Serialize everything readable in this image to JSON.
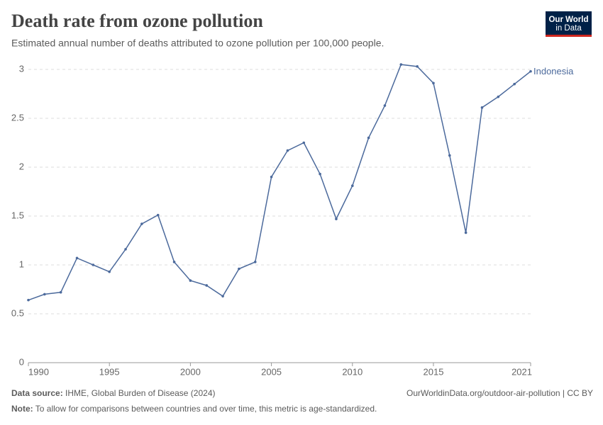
{
  "logo": [
    "Our World",
    "in Data"
  ],
  "chart_data": {
    "type": "line",
    "title": "Death rate from ozone pollution",
    "subtitle": "Estimated annual number of deaths attributed to ozone pollution per 100,000 people.",
    "x": [
      1990,
      1991,
      1992,
      1993,
      1994,
      1995,
      1996,
      1997,
      1998,
      1999,
      2000,
      2001,
      2002,
      2003,
      2004,
      2005,
      2006,
      2007,
      2008,
      2009,
      2010,
      2011,
      2012,
      2013,
      2014,
      2015,
      2016,
      2017,
      2018,
      2019,
      2020,
      2021
    ],
    "series": [
      {
        "name": "Indonesia",
        "color": "#4c6a9c",
        "values": [
          0.64,
          0.7,
          0.72,
          1.07,
          1.0,
          0.93,
          1.16,
          1.42,
          1.51,
          1.03,
          0.84,
          0.79,
          0.68,
          0.96,
          1.03,
          1.9,
          2.17,
          2.25,
          1.93,
          1.47,
          1.81,
          2.3,
          2.63,
          3.05,
          3.03,
          2.86,
          2.12,
          1.33,
          2.61,
          2.72,
          2.85,
          2.98
        ]
      }
    ],
    "xlim": [
      1990,
      2021
    ],
    "xticks": [
      1990,
      1995,
      2000,
      2005,
      2010,
      2015,
      2021
    ],
    "ylim": [
      0,
      3
    ],
    "yticks": [
      0,
      0.5,
      1,
      1.5,
      2,
      2.5,
      3
    ],
    "grid": true
  },
  "footer": {
    "source_label": "Data source:",
    "source": "IHME, Global Burden of Disease (2024)",
    "url": "OurWorldinData.org/outdoor-air-pollution | CC BY",
    "note_label": "Note:",
    "note": "To allow for comparisons between countries and over time, this metric is age-standardized."
  }
}
